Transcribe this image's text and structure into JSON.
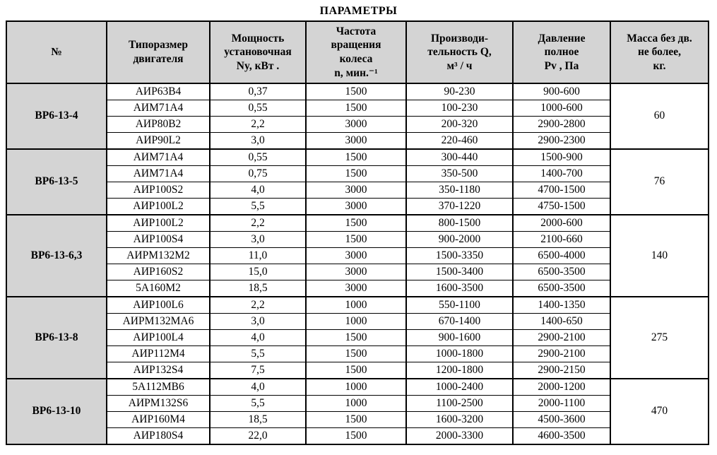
{
  "title": "ПАРАМЕТРЫ",
  "colors": {
    "header_bg": "#d4d4d4",
    "border": "#000000",
    "text": "#000000",
    "page_bg": "#ffffff"
  },
  "table": {
    "headers": [
      "№",
      "Типоразмер\nдвигателя",
      "Мощность\nустановочная\nNy, кВт .",
      "Частота\nвращения\nколеса\nn, мин.⁻¹",
      "Производи-\nтельность Q,\nм³ / ч",
      "Давление\nполное\nPv , Па",
      "Масса без дв.\nне более,\nкг."
    ],
    "groups": [
      {
        "name": "ВР6-13-4",
        "mass": "60",
        "rows": [
          {
            "motor": "АИР63В4",
            "power": "0,37",
            "rpm": "1500",
            "capacity": "90-230",
            "pressure": "900-600"
          },
          {
            "motor": "АИМ71А4",
            "power": "0,55",
            "rpm": "1500",
            "capacity": "100-230",
            "pressure": "1000-600"
          },
          {
            "motor": "АИР80В2",
            "power": "2,2",
            "rpm": "3000",
            "capacity": "200-320",
            "pressure": "2900-2800"
          },
          {
            "motor": "АИР90L2",
            "power": "3,0",
            "rpm": "3000",
            "capacity": "220-460",
            "pressure": "2900-2300"
          }
        ]
      },
      {
        "name": "ВР6-13-5",
        "mass": "76",
        "rows": [
          {
            "motor": "АИМ71А4",
            "power": "0,55",
            "rpm": "1500",
            "capacity": "300-440",
            "pressure": "1500-900"
          },
          {
            "motor": "АИМ71А4",
            "power": "0,75",
            "rpm": "1500",
            "capacity": "350-500",
            "pressure": "1400-700"
          },
          {
            "motor": "АИР100S2",
            "power": "4,0",
            "rpm": "3000",
            "capacity": "350-1180",
            "pressure": "4700-1500"
          },
          {
            "motor": "АИР100L2",
            "power": "5,5",
            "rpm": "3000",
            "capacity": "370-1220",
            "pressure": "4750-1500"
          }
        ]
      },
      {
        "name": "ВР6-13-6,3",
        "mass": "140",
        "rows": [
          {
            "motor": "АИР100L2",
            "power": "2,2",
            "rpm": "1500",
            "capacity": "800-1500",
            "pressure": "2000-600"
          },
          {
            "motor": "АИР100S4",
            "power": "3,0",
            "rpm": "1500",
            "capacity": "900-2000",
            "pressure": "2100-660"
          },
          {
            "motor": "АИРМ132М2",
            "power": "11,0",
            "rpm": "3000",
            "capacity": "1500-3350",
            "pressure": "6500-4000"
          },
          {
            "motor": "АИР160S2",
            "power": "15,0",
            "rpm": "3000",
            "capacity": "1500-3400",
            "pressure": "6500-3500"
          },
          {
            "motor": "5А160М2",
            "power": "18,5",
            "rpm": "3000",
            "capacity": "1600-3500",
            "pressure": "6500-3500"
          }
        ]
      },
      {
        "name": "ВР6-13-8",
        "mass": "275",
        "rows": [
          {
            "motor": "АИР100L6",
            "power": "2,2",
            "rpm": "1000",
            "capacity": "550-1100",
            "pressure": "1400-1350"
          },
          {
            "motor": "АИРМ132МА6",
            "power": "3,0",
            "rpm": "1000",
            "capacity": "670-1400",
            "pressure": "1400-650"
          },
          {
            "motor": "АИР100L4",
            "power": "4,0",
            "rpm": "1500",
            "capacity": "900-1600",
            "pressure": "2900-2100"
          },
          {
            "motor": "АИР112М4",
            "power": "5,5",
            "rpm": "1500",
            "capacity": "1000-1800",
            "pressure": "2900-2100"
          },
          {
            "motor": "АИР132S4",
            "power": "7,5",
            "rpm": "1500",
            "capacity": "1200-1800",
            "pressure": "2900-2150"
          }
        ]
      },
      {
        "name": "ВР6-13-10",
        "mass": "470",
        "rows": [
          {
            "motor": "5А112МВ6",
            "power": "4,0",
            "rpm": "1000",
            "capacity": "1000-2400",
            "pressure": "2000-1200"
          },
          {
            "motor": "АИРМ132S6",
            "power": "5,5",
            "rpm": "1000",
            "capacity": "1100-2500",
            "pressure": "2000-1100"
          },
          {
            "motor": "АИР160М4",
            "power": "18,5",
            "rpm": "1500",
            "capacity": "1600-3200",
            "pressure": "4500-3600"
          },
          {
            "motor": "АИР180S4",
            "power": "22,0",
            "rpm": "1500",
            "capacity": "2000-3300",
            "pressure": "4600-3500"
          }
        ]
      }
    ]
  }
}
